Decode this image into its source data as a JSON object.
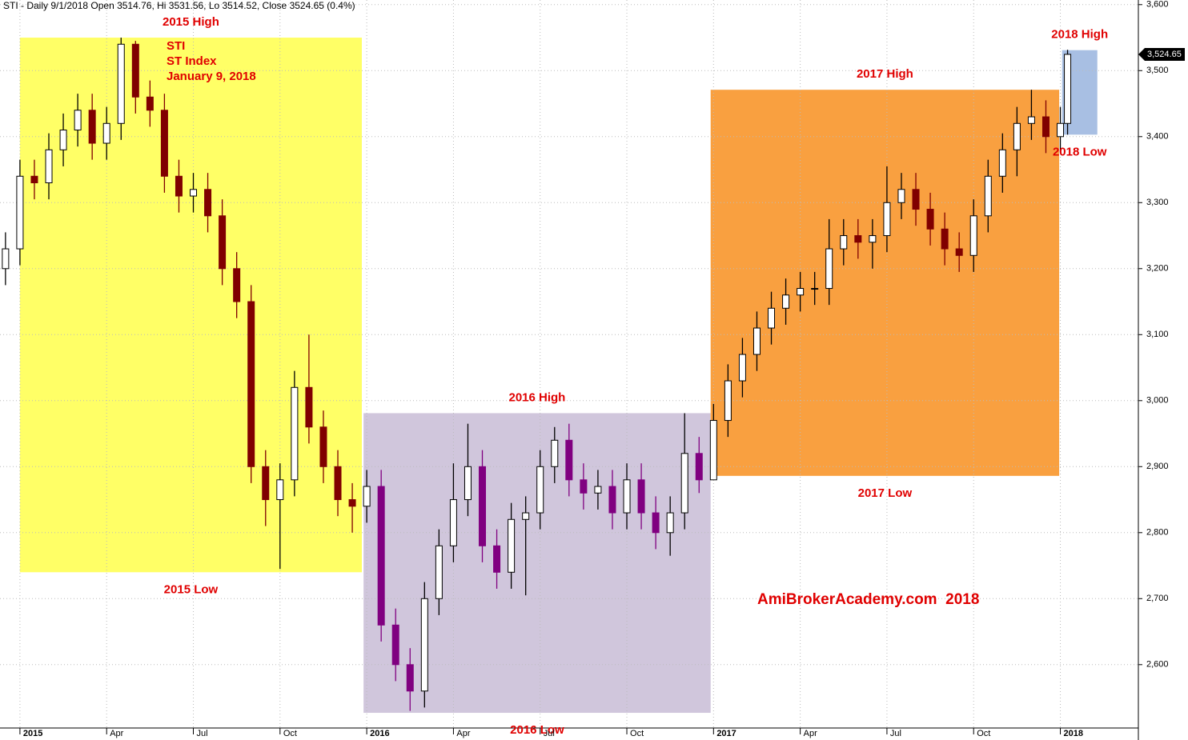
{
  "chart_data": {
    "type": "candlestick",
    "title": "STI - Daily 9/1/2018 Open 3514.76, Hi 3531.56, Lo 3514.52, Close 3524.65 (0.4%)",
    "annotations": [
      "STI",
      "ST Index",
      "January 9, 2018"
    ],
    "watermark": "AmiBrokerAcademy.com  2018",
    "last_price": {
      "value": 3524.65,
      "label": "3,524.65"
    },
    "xlim": [
      -0.69,
      38.7
    ],
    "ylim": [
      2504,
      3607
    ],
    "xticks": [
      {
        "value": 0,
        "label": "2015"
      },
      {
        "value": 3,
        "label": "Apr"
      },
      {
        "value": 6,
        "label": "Jul"
      },
      {
        "value": 9,
        "label": "Oct"
      },
      {
        "value": 12,
        "label": "2016"
      },
      {
        "value": 15,
        "label": "Apr"
      },
      {
        "value": 18,
        "label": "Jul"
      },
      {
        "value": 21,
        "label": "Oct"
      },
      {
        "value": 24,
        "label": "2017"
      },
      {
        "value": 27,
        "label": "Apr"
      },
      {
        "value": 30,
        "label": "Jul"
      },
      {
        "value": 33,
        "label": "Oct"
      },
      {
        "value": 36,
        "label": "2018"
      }
    ],
    "yticks": [
      {
        "value": 2600,
        "label": "2,600"
      },
      {
        "value": 2700,
        "label": "2,700"
      },
      {
        "value": 2800,
        "label": "2,800"
      },
      {
        "value": 2900,
        "label": "2,900"
      },
      {
        "value": 3000,
        "label": "3,000"
      },
      {
        "value": 3100,
        "label": "3,100"
      },
      {
        "value": 3200,
        "label": "3,200"
      },
      {
        "value": 3300,
        "label": "3,300"
      },
      {
        "value": 3400,
        "label": "3,400"
      },
      {
        "value": 3500,
        "label": "3,500"
      },
      {
        "value": 3600,
        "label": "3,600"
      }
    ],
    "grid": true,
    "up_color": "#ffffff",
    "ranges": [
      {
        "label_high": "2015 High",
        "label_low": "2015 Low",
        "high": 3550,
        "low": 2740,
        "x0": 0,
        "x1": 11.83,
        "color": "#ffff66",
        "down_color": "#800000"
      },
      {
        "label_high": "2016 High",
        "label_low": "2016 Low",
        "high": 2981,
        "low": 2527,
        "x0": 11.89,
        "x1": 23.9,
        "color": "#d0c6dc",
        "down_color": "#800080"
      },
      {
        "label_high": "2017 High",
        "label_low": "2017 Low",
        "high": 3471,
        "low": 2886,
        "x0": 23.9,
        "x1": 35.96,
        "color": "#f9a040",
        "down_color": "#800000"
      },
      {
        "label_high": "2018 High",
        "label_low": "2018 Low",
        "high": 3531,
        "low": 3403,
        "x0": 36.06,
        "x1": 37.28,
        "color": "#a8bfe3",
        "down_color": "#800000"
      }
    ],
    "x": [
      -0.5,
      0,
      0.5,
      1,
      1.5,
      2,
      2.5,
      3,
      3.5,
      4,
      4.5,
      5,
      5.5,
      6,
      6.5,
      7,
      7.5,
      8,
      8.5,
      9,
      9.5,
      10,
      10.5,
      11,
      11.5,
      12,
      12.5,
      13,
      13.5,
      14,
      14.5,
      15,
      15.5,
      16,
      16.5,
      17,
      17.5,
      18,
      18.5,
      19,
      19.5,
      20,
      20.5,
      21,
      21.5,
      22,
      22.5,
      23,
      23.5,
      24,
      24.5,
      25,
      25.5,
      26,
      26.5,
      27,
      27.5,
      28,
      28.5,
      29,
      29.5,
      30,
      30.5,
      31,
      31.5,
      32,
      32.5,
      33,
      33.5,
      34,
      34.5,
      35,
      35.5,
      36,
      36.25
    ],
    "open": [
      3200,
      3230,
      3340,
      3330,
      3380,
      3410,
      3440,
      3390,
      3420,
      3540,
      3460,
      3440,
      3340,
      3310,
      3320,
      3280,
      3200,
      3150,
      2900,
      2850,
      2880,
      3020,
      2960,
      2900,
      2850,
      2840,
      2870,
      2660,
      2600,
      2560,
      2700,
      2780,
      2850,
      2900,
      2780,
      2740,
      2820,
      2830,
      2900,
      2940,
      2880,
      2860,
      2870,
      2830,
      2880,
      2830,
      2800,
      2830,
      2920,
      2880,
      2970,
      3030,
      3070,
      3110,
      3140,
      3160,
      3170,
      3170,
      3230,
      3250,
      3240,
      3250,
      3300,
      3320,
      3290,
      3260,
      3230,
      3220,
      3280,
      3340,
      3380,
      3420,
      3430,
      3400,
      3420
    ],
    "high": [
      3255,
      3365,
      3365,
      3405,
      3435,
      3465,
      3465,
      3445,
      3550,
      3545,
      3485,
      3465,
      3365,
      3345,
      3345,
      3305,
      3225,
      3175,
      2925,
      2905,
      3045,
      3100,
      2985,
      2925,
      2875,
      2895,
      2895,
      2685,
      2625,
      2725,
      2805,
      2905,
      2965,
      2925,
      2805,
      2845,
      2855,
      2925,
      2960,
      2965,
      2905,
      2895,
      2895,
      2905,
      2905,
      2855,
      2855,
      2981,
      2945,
      2995,
      3055,
      3095,
      3135,
      3165,
      3185,
      3195,
      3195,
      3275,
      3275,
      3275,
      3275,
      3355,
      3345,
      3345,
      3315,
      3285,
      3255,
      3305,
      3365,
      3405,
      3445,
      3471,
      3455,
      3445,
      3531.56
    ],
    "low": [
      3175,
      3205,
      3305,
      3305,
      3355,
      3385,
      3365,
      3365,
      3395,
      3435,
      3415,
      3315,
      3285,
      3285,
      3255,
      3175,
      3125,
      2875,
      2810,
      2745,
      2855,
      2935,
      2875,
      2825,
      2800,
      2815,
      2635,
      2575,
      2530,
      2535,
      2675,
      2755,
      2825,
      2755,
      2715,
      2715,
      2705,
      2805,
      2875,
      2855,
      2835,
      2835,
      2805,
      2805,
      2805,
      2775,
      2765,
      2805,
      2860,
      2880,
      2945,
      3005,
      3045,
      3085,
      3115,
      3135,
      3145,
      3145,
      3205,
      3215,
      3200,
      3225,
      3275,
      3265,
      3235,
      3205,
      3195,
      3195,
      3255,
      3315,
      3340,
      3395,
      3375,
      3375,
      3403
    ],
    "close": [
      3230,
      3340,
      3330,
      3380,
      3410,
      3440,
      3390,
      3420,
      3540,
      3460,
      3440,
      3340,
      3310,
      3320,
      3280,
      3200,
      3150,
      2900,
      2850,
      2880,
      3020,
      2960,
      2900,
      2850,
      2840,
      2870,
      2660,
      2600,
      2560,
      2700,
      2780,
      2850,
      2900,
      2780,
      2740,
      2820,
      2830,
      2900,
      2940,
      2880,
      2860,
      2870,
      2830,
      2880,
      2830,
      2800,
      2830,
      2920,
      2880,
      2970,
      3030,
      3070,
      3110,
      3140,
      3160,
      3170,
      3170,
      3230,
      3250,
      3240,
      3250,
      3300,
      3320,
      3290,
      3260,
      3230,
      3220,
      3280,
      3340,
      3380,
      3420,
      3430,
      3400,
      3420,
      3524.65
    ]
  }
}
